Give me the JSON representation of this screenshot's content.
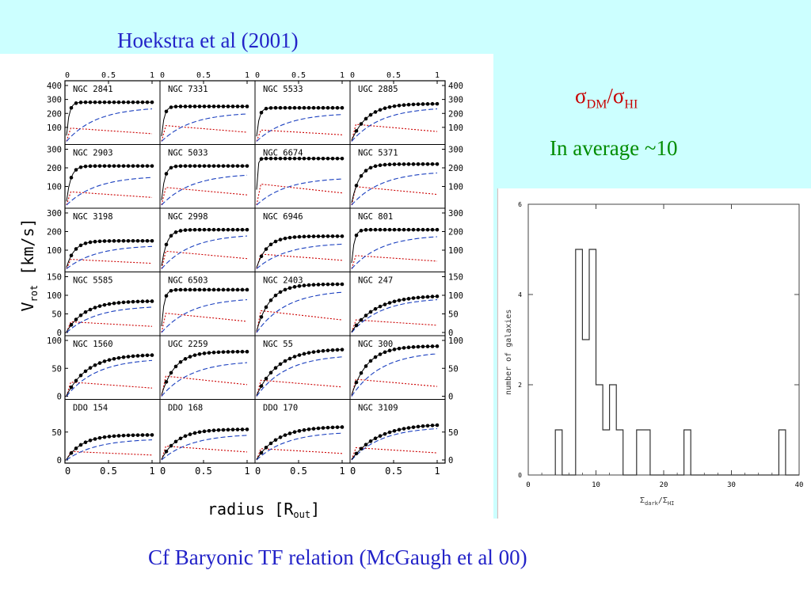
{
  "slide": {
    "title": "Hoekstra et al (2001)",
    "sigma_ratio": {
      "sigma1": "σ",
      "sub1": "DM",
      "slash": "/",
      "sigma2": "σ",
      "sub2": "HI"
    },
    "average_note": "In average ~10",
    "footer": "Cf Baryonic TF relation (McGaugh et al 00)"
  },
  "colors": {
    "background": "#ccffff",
    "title_blue": "#2323c8",
    "sigma_red": "#c80000",
    "average_green": "#008c00",
    "gas_curve": "#cc0000",
    "disk_curve": "#1a3fbf"
  },
  "chart_data": [
    {
      "type": "line",
      "xlabel": "radius [R",
      "xlabel_sub": "out",
      "xlabel_close": "]",
      "ylabel": "V",
      "ylabel_sub": "rot",
      "ylabel_units": "[km/s]",
      "x_ticks": [
        "0",
        "0.5",
        "1"
      ],
      "xlim": [
        0,
        1
      ],
      "series_kinds": [
        "data points",
        "total fit",
        "dark halo",
        "gas/stellar"
      ],
      "rows": [
        {
          "ylim": [
            0,
            400
          ],
          "yticks": [
            "100",
            "200",
            "300",
            "400"
          ],
          "galaxies": [
            "NGC 2841",
            "NGC 7331",
            "NGC 5533",
            "UGC 2885"
          ]
        },
        {
          "ylim": [
            0,
            300
          ],
          "yticks": [
            "100",
            "200",
            "300"
          ],
          "galaxies": [
            "NGC 2903",
            "NGC 5033",
            "NGC 6674",
            "NGC 5371"
          ]
        },
        {
          "ylim": [
            0,
            300
          ],
          "yticks": [
            "100",
            "200",
            "300"
          ],
          "galaxies": [
            "NGC 3198",
            "NGC 2998",
            "NGC 6946",
            "NGC 801"
          ]
        },
        {
          "ylim": [
            0,
            150
          ],
          "yticks": [
            "0",
            "50",
            "100",
            "150"
          ],
          "galaxies": [
            "NGC 5585",
            "NGC 6503",
            "NGC 2403",
            "NGC 247"
          ]
        },
        {
          "ylim": [
            0,
            100
          ],
          "yticks": [
            "0",
            "50",
            "100"
          ],
          "galaxies": [
            "NGC 1560",
            "UGC 2259",
            "NGC 55",
            "NGC 300"
          ]
        },
        {
          "ylim": [
            0,
            100
          ],
          "yticks": [
            "0",
            "50"
          ],
          "galaxies": [
            "DDO 154",
            "DDO 168",
            "DDO 170",
            "NGC 3109"
          ]
        }
      ],
      "panel_params": [
        [
          [
            280,
            0.05,
            290,
            0.3
          ],
          [
            250,
            0.05,
            245,
            0.4
          ],
          [
            240,
            0.05,
            240,
            0.3
          ],
          [
            270,
            0.3,
            290,
            0.4
          ]
        ],
        [
          [
            210,
            0.08,
            185,
            0.3
          ],
          [
            210,
            0.06,
            200,
            0.4
          ],
          [
            250,
            0.02,
            175,
            0.4
          ],
          [
            220,
            0.15,
            215,
            0.4
          ]
        ],
        [
          [
            150,
            0.15,
            150,
            0.3
          ],
          [
            210,
            0.1,
            220,
            0.4
          ],
          [
            175,
            0.2,
            165,
            0.4
          ],
          [
            210,
            0.05,
            215,
            0.3
          ]
        ],
        [
          [
            85,
            0.35,
            85,
            0.3
          ],
          [
            115,
            0.05,
            110,
            0.4
          ],
          [
            130,
            0.25,
            135,
            0.4
          ],
          [
            100,
            0.45,
            110,
            0.3
          ]
        ],
        [
          [
            75,
            0.4,
            80,
            0.3
          ],
          [
            80,
            0.25,
            75,
            0.4
          ],
          [
            85,
            0.4,
            88,
            0.3
          ],
          [
            90,
            0.3,
            95,
            0.3
          ]
        ],
        [
          [
            45,
            0.3,
            45,
            0.3
          ],
          [
            55,
            0.3,
            55,
            0.4
          ],
          [
            60,
            0.4,
            60,
            0.3
          ],
          [
            65,
            0.5,
            70,
            0.3
          ]
        ]
      ]
    },
    {
      "type": "bar",
      "xlabel": "Σ",
      "xlabel_sub1": "dark",
      "xlabel_mid": "/Σ",
      "xlabel_sub2": "HI",
      "ylabel": "number of galaxies",
      "xlim": [
        0,
        40
      ],
      "ylim": [
        0,
        6
      ],
      "x_ticks": [
        "0",
        "10",
        "20",
        "30",
        "40"
      ],
      "y_ticks": [
        "0",
        "2",
        "4",
        "6"
      ],
      "bin_width": 1,
      "bins": [
        {
          "x": 4,
          "count": 1
        },
        {
          "x": 7,
          "count": 5
        },
        {
          "x": 8,
          "count": 3
        },
        {
          "x": 9,
          "count": 5
        },
        {
          "x": 10,
          "count": 2
        },
        {
          "x": 11,
          "count": 1
        },
        {
          "x": 12,
          "count": 2
        },
        {
          "x": 13,
          "count": 1
        },
        {
          "x": 16,
          "count": 1
        },
        {
          "x": 17,
          "count": 1
        },
        {
          "x": 23,
          "count": 1
        },
        {
          "x": 37,
          "count": 1
        }
      ]
    }
  ]
}
